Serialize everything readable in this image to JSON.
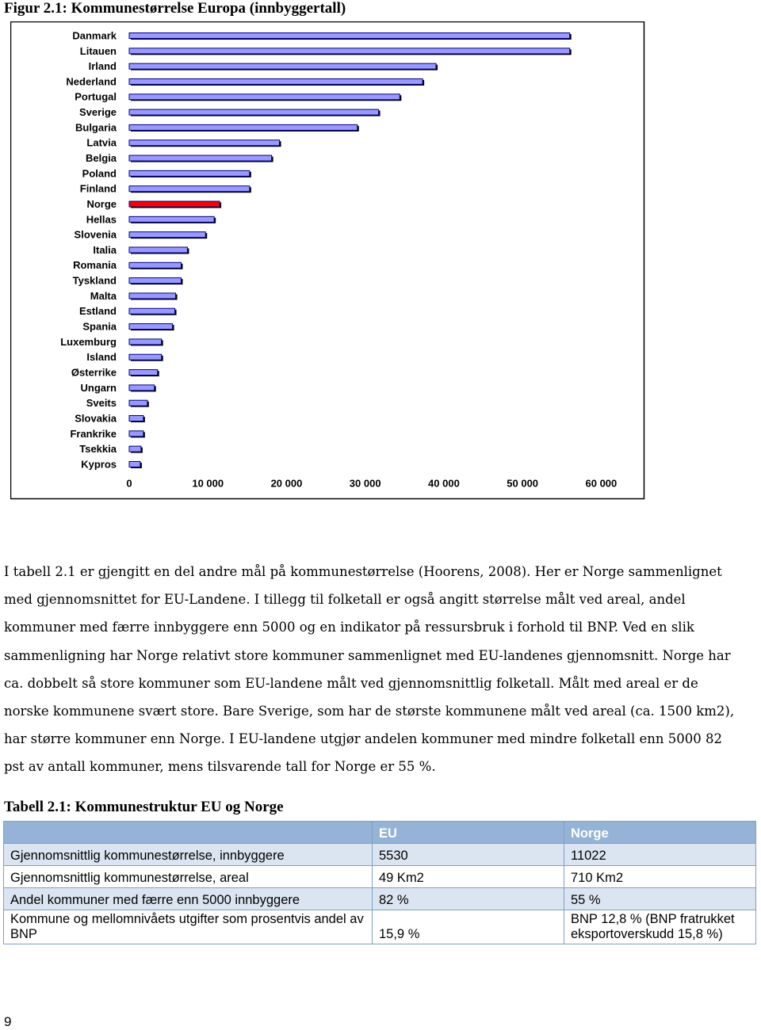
{
  "figure_caption": "Figur 2.1: Kommunestørrelse Europa (innbyggertall)",
  "chart_data": {
    "type": "hbar",
    "categories": [
      "Danmark",
      "Litauen",
      "Irland",
      "Nederland",
      "Portugal",
      "Sverige",
      "Bulgaria",
      "Latvia",
      "Belgia",
      "Poland",
      "Finland",
      "Norge",
      "Hellas",
      "Slovenia",
      "Italia",
      "Romania",
      "Tyskland",
      "Malta",
      "Estland",
      "Spania",
      "Luxemburg",
      "Island",
      "Østerrike",
      "Ungarn",
      "Sveits",
      "Slovakia",
      "Frankrike",
      "Tsekkia",
      "Kypros"
    ],
    "values": [
      56000,
      56000,
      39000,
      37300,
      34400,
      31700,
      29000,
      19100,
      18100,
      15300,
      15300,
      11500,
      10800,
      9700,
      7400,
      6600,
      6600,
      5900,
      5800,
      5500,
      4100,
      4100,
      3600,
      3200,
      2300,
      1800,
      1800,
      1500,
      1400
    ],
    "colors": [
      "#9999ff",
      "#9999ff",
      "#9999ff",
      "#9999ff",
      "#9999ff",
      "#9999ff",
      "#9999ff",
      "#9999ff",
      "#9999ff",
      "#9999ff",
      "#9999ff",
      "#ff0000",
      "#9999ff",
      "#9999ff",
      "#9999ff",
      "#9999ff",
      "#9999ff",
      "#9999ff",
      "#9999ff",
      "#9999ff",
      "#9999ff",
      "#9999ff",
      "#9999ff",
      "#9999ff",
      "#9999ff",
      "#9999ff",
      "#9999ff",
      "#9999ff",
      "#9999ff"
    ],
    "xlim": [
      0,
      65000
    ],
    "xticks": [
      0,
      {
        "value": 10000,
        "label": "10 000"
      },
      {
        "value": 20000,
        "label": "20 000"
      },
      {
        "value": 30000,
        "label": "30 000"
      },
      {
        "value": 40000,
        "label": "40 000"
      },
      {
        "value": 50000,
        "label": "50 000"
      },
      {
        "value": 60000,
        "label": "60 000"
      }
    ]
  },
  "paragraph": "I tabell 2.1 er gjengitt en del andre mål på kommunestørrelse (Hoorens, 2008). Her er Norge sammenlignet med gjennomsnittet for EU-Landene. I tillegg til folketall er også angitt størrelse målt ved areal, andel kommuner med færre innbyggere enn 5000 og en indikator på ressursbruk i forhold til BNP. Ved en slik sammenligning har Norge relativt store kommuner sammenlignet med EU-landenes gjennomsnitt. Norge har ca. dobbelt så store kommuner som EU-landene målt ved gjennomsnittlig folketall. Målt med areal er de norske kommunene svært store. Bare Sverige, som har de største kommunene målt ved areal (ca. 1500 km2), har større kommuner enn Norge. I EU-landene utgjør andelen kommuner med mindre folketall enn 5000 82 pst av antall kommuner, mens tilsvarende tall for Norge er 55 %.",
  "table": {
    "caption": "Tabell 2.1: Kommunestruktur EU og Norge",
    "header": [
      "EU",
      "Norge"
    ],
    "rows": [
      [
        "Gjennomsnittlig kommunestørrelse, innbyggere",
        "5530",
        "11022"
      ],
      [
        "Gjennomsnittlig kommunestørrelse, areal",
        "49 Km2",
        "710 Km2"
      ],
      [
        "Andel kommuner med færre enn 5000 innbyggere",
        "82 %",
        "55 %"
      ],
      [
        "Kommune og mellomnivåets utgifter som prosentvis andel av BNP",
        "15,9 %",
        "BNP 12,8 % (BNP fratrukket eksportoverskudd 15,8 %)"
      ]
    ]
  },
  "page_number": "9"
}
